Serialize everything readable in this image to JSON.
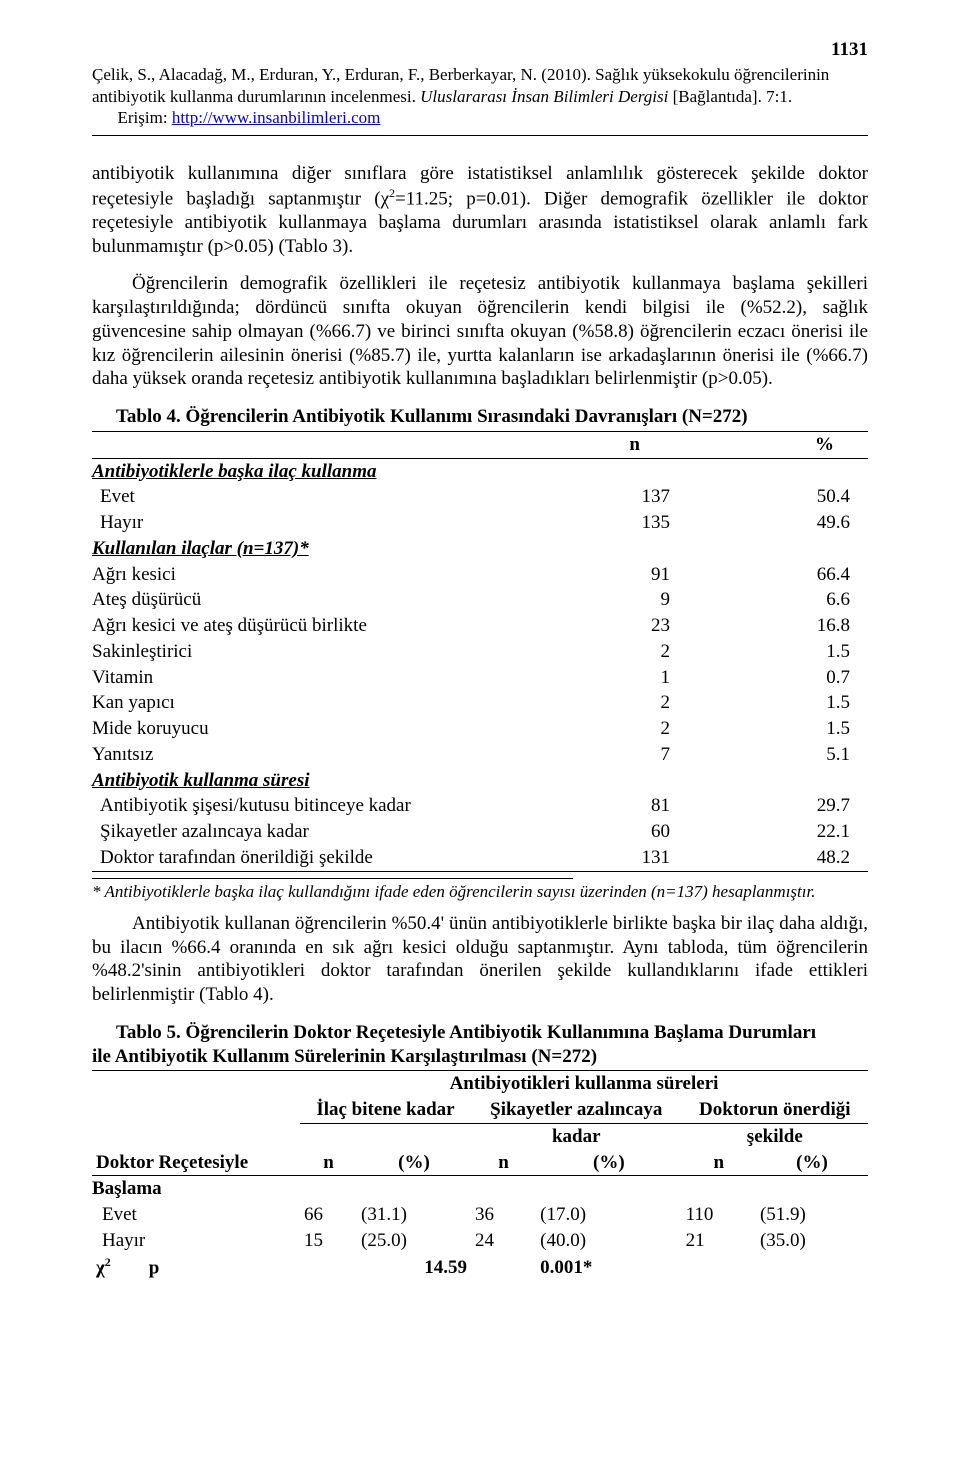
{
  "page_number": "1131",
  "citation": {
    "authors": "Çelik, S., Alacadağ, M., Erduran, Y., Erduran, F., Berberkayar, N. (2010). Sağlık yüksekokulu öğrencilerinin antibiyotik kullanma durumlarının incelenmesi.",
    "journal": "Uluslararası İnsan Bilimleri Dergisi",
    "bracket": "[Bağlantıda]. 7:1.",
    "access_prefix": "Erişim: ",
    "url": "http://www.insanbilimleri.com"
  },
  "paragraphs": {
    "p1a": "antibiyotik kullanımına diğer sınıflara göre istatistiksel anlamlılık gösterecek şekilde doktor reçetesiyle başladığı saptanmıştır (χ",
    "p1b": "=11.25; p=0.01). Diğer demografik özellikler ile doktor reçetesiyle antibiyotik kullanmaya başlama durumları arasında istatistiksel olarak anlamlı fark bulunmamıştır (p>0.05) (Tablo 3).",
    "p2": "Öğrencilerin demografik özellikleri ile reçetesiz antibiyotik kullanmaya başlama şekilleri karşılaştırıldığında; dördüncü sınıfta okuyan öğrencilerin kendi bilgisi ile (%52.2), sağlık güvencesine sahip olmayan (%66.7) ve birinci sınıfta okuyan (%58.8) öğrencilerin eczacı önerisi ile kız öğrencilerin ailesinin önerisi (%85.7) ile, yurtta kalanların ise arkadaşlarının önerisi ile (%66.7) daha yüksek oranda reçetesiz antibiyotik kullanımına başladıkları belirlenmiştir (p>0.05).",
    "p3": "Antibiyotik kullanan öğrencilerin %50.4' ünün antibiyotiklerle birlikte başka bir ilaç daha aldığı, bu ilacın %66.4 oranında en sık ağrı kesici olduğu saptanmıştır. Aynı tabloda, tüm öğrencilerin %48.2'sinin antibiyotikleri doktor tarafından önerilen şekilde kullandıklarını ifade ettikleri belirlenmiştir (Tablo 4)."
  },
  "table4": {
    "title": "Tablo 4. Öğrencilerin Antibiyotik Kullanımı Sırasındaki Davranışları  (N=272)",
    "col_n": "n",
    "col_p": "%",
    "sections": [
      {
        "label": "Antibiyotiklerle başka ilaç kullanma",
        "rows": [
          {
            "label": "Evet",
            "n": "137",
            "p": "50.4",
            "indent": true
          },
          {
            "label": "Hayır",
            "n": "135",
            "p": "49.6",
            "indent": true
          }
        ]
      },
      {
        "label": "Kullanılan ilaçlar (n=137)*",
        "rows": [
          {
            "label": "Ağrı kesici",
            "n": "91",
            "p": "66.4"
          },
          {
            "label": "Ateş düşürücü",
            "n": "9",
            "p": "6.6"
          },
          {
            "label": "Ağrı kesici ve ateş düşürücü birlikte",
            "n": "23",
            "p": "16.8"
          },
          {
            "label": "Sakinleştirici",
            "n": "2",
            "p": "1.5"
          },
          {
            "label": "Vitamin",
            "n": "1",
            "p": "0.7"
          },
          {
            "label": "Kan yapıcı",
            "n": "2",
            "p": "1.5"
          },
          {
            "label": "Mide koruyucu",
            "n": "2",
            "p": "1.5"
          },
          {
            "label": "Yanıtsız",
            "n": "7",
            "p": "5.1"
          }
        ]
      },
      {
        "label": "Antibiyotik kullanma süresi",
        "rows": [
          {
            "label": "Antibiyotik şişesi/kutusu bitinceye kadar",
            "n": "81",
            "p": "29.7",
            "indent": true
          },
          {
            "label": "Şikayetler azalıncaya kadar",
            "n": "60",
            "p": "22.1",
            "indent": true
          },
          {
            "label": "Doktor tarafından önerildiği şekilde",
            "n": "131",
            "p": "48.2",
            "indent": true,
            "last": true
          }
        ]
      }
    ],
    "footnote": "* Antibiyotiklerle başka ilaç kullandığını ifade eden öğrencilerin sayısı üzerinden (n=137) hesaplanmıştır."
  },
  "table5": {
    "title_line1": "Tablo 5. Öğrencilerin Doktor Reçetesiyle Antibiyotik Kullanımına Başlama Durumları",
    "title_line2": "ile Antibiyotik Kullanım Sürelerinin Karşılaştırılması (N=272)",
    "spanning": "Antibiyotikleri kullanma süreleri",
    "col_groups": [
      {
        "top": "İlaç bitene kadar",
        "bottom": ""
      },
      {
        "top": "Şikayetler azalıncaya",
        "bottom": "kadar"
      },
      {
        "top": "Doktorun önerdiği",
        "bottom": "şekilde"
      }
    ],
    "row_header1": "Doktor Reçetesiyle",
    "row_header2": "Başlama",
    "sub_n": "n",
    "sub_p": "(%)",
    "rows": [
      {
        "label": "Evet",
        "v": [
          "66",
          "(31.1)",
          "36",
          "(17.0)",
          "110",
          "(51.9)"
        ]
      },
      {
        "label": "Hayır",
        "v": [
          "15",
          "(25.0)",
          "24",
          "(40.0)",
          "21",
          "(35.0)"
        ]
      }
    ],
    "chi_label_a": "χ",
    "chi_label_b": "p",
    "chi_value": "14.59",
    "p_value": "0.001*"
  }
}
